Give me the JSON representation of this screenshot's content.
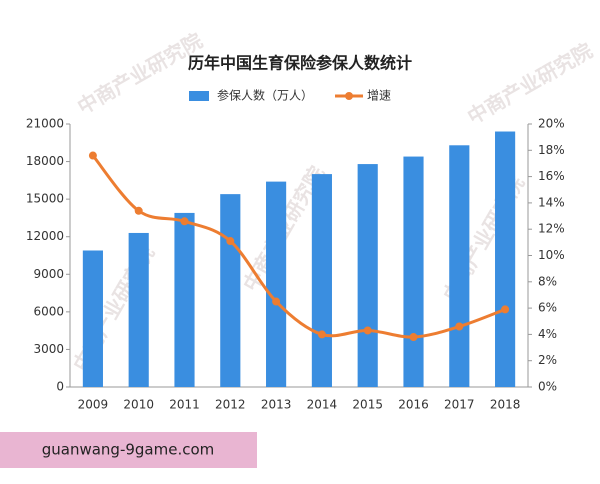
{
  "chart_data": {
    "type": "bar",
    "title": "历年中国生育保险参保人数统计",
    "categories": [
      "2009",
      "2010",
      "2011",
      "2012",
      "2013",
      "2014",
      "2015",
      "2016",
      "2017",
      "2018"
    ],
    "series": [
      {
        "name": "参保人数（万人）",
        "type": "bar",
        "color": "#3a8ee0",
        "values": [
          10900,
          12300,
          13900,
          15400,
          16400,
          17000,
          17800,
          18400,
          19300,
          20400
        ]
      },
      {
        "name": "增速",
        "type": "line",
        "axis": "y2",
        "color": "#ed7d31",
        "values": [
          17.6,
          13.4,
          12.6,
          11.1,
          6.5,
          4.0,
          4.3,
          3.8,
          4.6,
          5.9
        ]
      }
    ],
    "ylim": [
      0,
      21000
    ],
    "yticks": [
      0,
      3000,
      6000,
      9000,
      12000,
      15000,
      18000,
      21000
    ],
    "y2lim": [
      0,
      20
    ],
    "y2ticks": [
      {
        "value": 0,
        "label": "0%"
      },
      {
        "value": 2,
        "label": "2%"
      },
      {
        "value": 4,
        "label": "4%"
      },
      {
        "value": 6,
        "label": "6%"
      },
      {
        "value": 8,
        "label": "8%"
      },
      {
        "value": 10,
        "label": "10%"
      },
      {
        "value": 12,
        "label": "12%"
      },
      {
        "value": 14,
        "label": "14%"
      },
      {
        "value": 16,
        "label": "16%"
      },
      {
        "value": 18,
        "label": "18%"
      },
      {
        "value": 20,
        "label": "20%"
      }
    ],
    "legend": "top",
    "watermark": "中商产业研究院"
  },
  "footer": {
    "site": "guanwang-9game.com"
  }
}
